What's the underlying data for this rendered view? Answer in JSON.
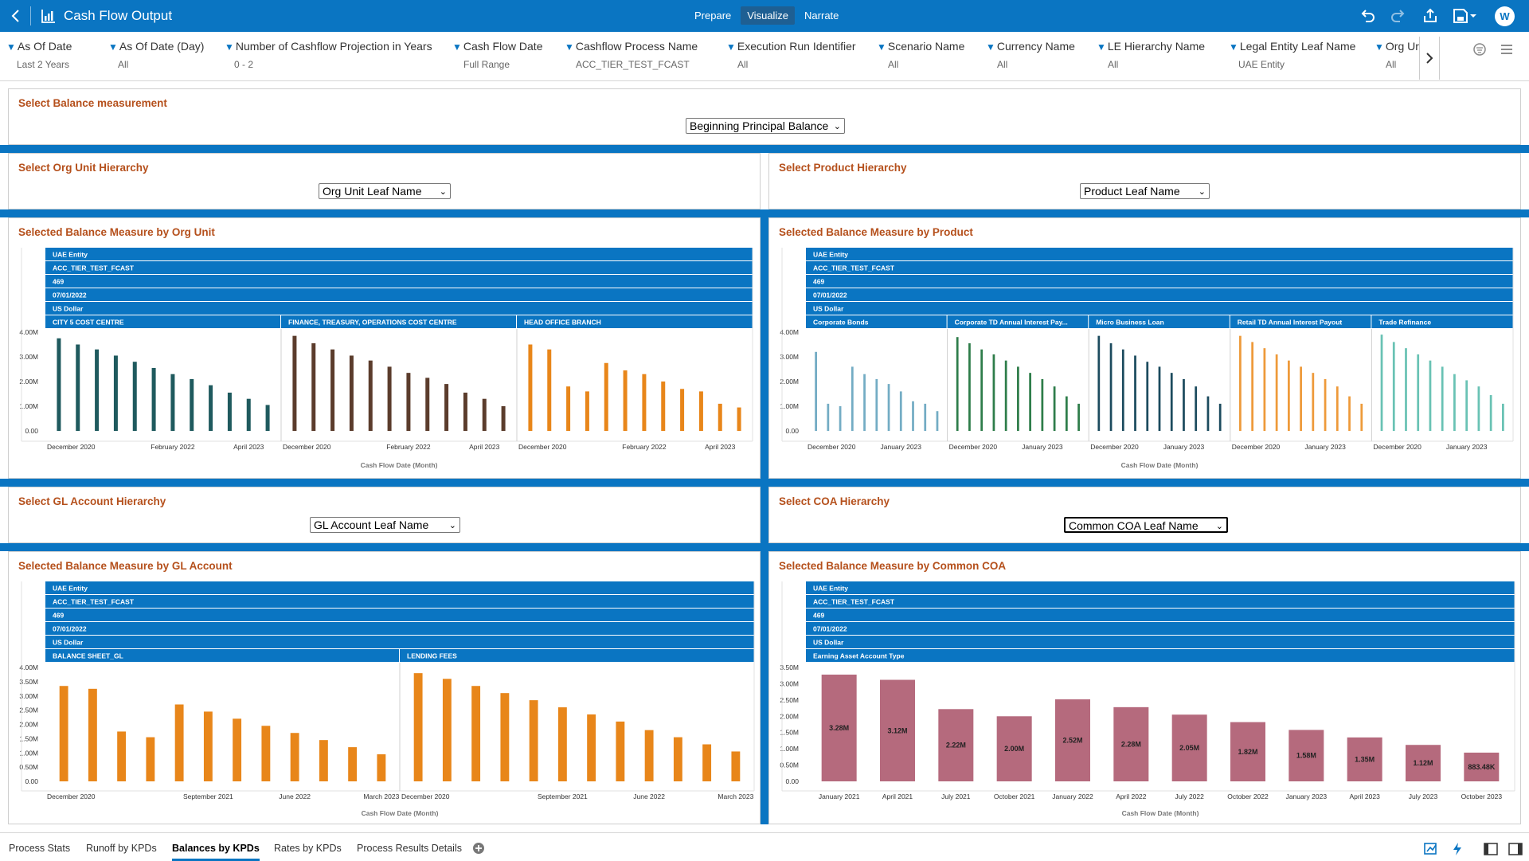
{
  "app": {
    "title": "Cash Flow Output",
    "modes": [
      "Prepare",
      "Visualize",
      "Narrate"
    ],
    "active_mode": "Visualize",
    "user_initial": "W"
  },
  "filters": [
    {
      "name": "As Of Date",
      "value": "Last 2 Years"
    },
    {
      "name": "As Of Date (Day)",
      "value": "All"
    },
    {
      "name": "Number of Cashflow Projection in Years",
      "value": "0 - 2"
    },
    {
      "name": "Cash Flow Date",
      "value": "Full Range"
    },
    {
      "name": "Cashflow Process Name",
      "value": "ACC_TIER_TEST_FCAST"
    },
    {
      "name": "Execution Run Identifier",
      "value": "All"
    },
    {
      "name": "Scenario Name",
      "value": "All"
    },
    {
      "name": "Currency Name",
      "value": "All"
    },
    {
      "name": "LE Hierarchy Name",
      "value": "All"
    },
    {
      "name": "Legal Entity Leaf Name",
      "value": "UAE Entity"
    },
    {
      "name": "Org Ur",
      "value": "All"
    }
  ],
  "balance_panel": {
    "title": "Select Balance measurement",
    "selected": "Beginning Principal Balance"
  },
  "org_select_panel": {
    "title": "Select Org Unit Hierarchy",
    "selected": "Org Unit Leaf Name"
  },
  "product_select_panel": {
    "title": "Select Product Hierarchy",
    "selected": "Product Leaf Name"
  },
  "gl_select_panel": {
    "title": "Select GL Account Hierarchy",
    "selected": "GL Account Leaf Name"
  },
  "coa_select_panel": {
    "title": "Select COA Hierarchy",
    "selected": "Common COA Leaf Name"
  },
  "common_headers": [
    "UAE Entity",
    "ACC_TIER_TEST_FCAST",
    "469",
    "07/01/2022",
    "US Dollar"
  ],
  "x_axis_title": "Cash Flow Date (Month)",
  "charts": {
    "org": {
      "title": "Selected Balance Measure by Org Unit",
      "chart_data": {
        "type": "bar",
        "ylim": [
          0,
          4.0
        ],
        "y_ticks": [
          "0.00",
          "1.00M",
          "2.00M",
          "3.00M",
          "4.00M"
        ],
        "groups": [
          {
            "name": "CITY 5 COST CENTRE",
            "color": "#1f5a5e",
            "values": [
              3.75,
              3.5,
              3.3,
              3.05,
              2.8,
              2.55,
              2.3,
              2.1,
              1.85,
              1.55,
              1.3,
              1.05
            ],
            "xticks": [
              "December 2020",
              "February 2022",
              "April 2023"
            ]
          },
          {
            "name": "FINANCE, TREASURY, OPERATIONS COST CENTRE",
            "color": "#5b3c2c",
            "values": [
              3.85,
              3.55,
              3.3,
              3.05,
              2.85,
              2.6,
              2.35,
              2.15,
              1.9,
              1.55,
              1.3,
              1.0
            ],
            "xticks": [
              "December 2020",
              "February 2022",
              "April 2023"
            ]
          },
          {
            "name": "HEAD OFFICE BRANCH",
            "color": "#e8861a",
            "values": [
              3.5,
              3.3,
              1.8,
              1.6,
              2.75,
              2.45,
              2.3,
              2.0,
              1.7,
              1.6,
              1.1,
              0.95
            ],
            "xticks": [
              "December 2020",
              "February 2022",
              "April 2023"
            ]
          }
        ]
      }
    },
    "product": {
      "title": "Selected Balance Measure by Product",
      "chart_data": {
        "type": "bar",
        "ylim": [
          0,
          4.0
        ],
        "y_ticks": [
          "0.00",
          "1.00M",
          "2.00M",
          "3.00M",
          "4.00M"
        ],
        "groups": [
          {
            "name": "Corporate Bonds",
            "color": "#73acc4",
            "values": [
              3.2,
              1.1,
              1.0,
              2.6,
              2.3,
              2.1,
              1.9,
              1.6,
              1.2,
              1.1,
              0.8
            ],
            "xticks": [
              "December 2020",
              "January 2023"
            ]
          },
          {
            "name": "Corporate TD Annual Interest Pay...",
            "color": "#2e7d4a",
            "values": [
              3.8,
              3.55,
              3.3,
              3.1,
              2.85,
              2.6,
              2.35,
              2.1,
              1.8,
              1.4,
              1.1
            ],
            "xticks": [
              "December 2020",
              "January 2023"
            ]
          },
          {
            "name": "Micro Business Loan",
            "color": "#1c4b5e",
            "values": [
              3.85,
              3.55,
              3.3,
              3.05,
              2.8,
              2.6,
              2.35,
              2.1,
              1.8,
              1.4,
              1.1
            ],
            "xticks": [
              "December 2020",
              "January 2023"
            ]
          },
          {
            "name": "Retail TD Annual Interest Payout",
            "color": "#ee9a3a",
            "values": [
              3.85,
              3.6,
              3.35,
              3.1,
              2.85,
              2.6,
              2.35,
              2.1,
              1.8,
              1.4,
              1.1
            ],
            "xticks": [
              "December 2020",
              "January 2023"
            ]
          },
          {
            "name": "Trade Refinance",
            "color": "#69c2b4",
            "values": [
              3.9,
              3.6,
              3.35,
              3.1,
              2.85,
              2.6,
              2.3,
              2.05,
              1.8,
              1.45,
              1.1
            ],
            "xticks": [
              "December 2020",
              "January 2023"
            ]
          }
        ]
      }
    },
    "gl": {
      "title": "Selected Balance Measure by GL Account",
      "chart_data": {
        "type": "bar",
        "ylim": [
          0,
          4.0
        ],
        "y_ticks": [
          "0.00",
          "0.50M",
          "1.00M",
          "1.50M",
          "2.00M",
          "2.50M",
          "3.00M",
          "3.50M",
          "4.00M"
        ],
        "groups": [
          {
            "name": "BALANCE SHEET_GL",
            "color": "#e8861a",
            "values": [
              3.35,
              3.25,
              1.75,
              1.55,
              2.7,
              2.45,
              2.2,
              1.95,
              1.7,
              1.45,
              1.2,
              0.95
            ],
            "xticks": [
              "December 2020",
              "September 2021",
              "June 2022",
              "March 2023"
            ]
          },
          {
            "name": "LENDING FEES",
            "color": "#e8861a",
            "values": [
              3.8,
              3.6,
              3.35,
              3.1,
              2.85,
              2.6,
              2.35,
              2.1,
              1.8,
              1.55,
              1.3,
              1.05
            ],
            "xticks": [
              "December 2020",
              "September 2021",
              "June 2022",
              "March 2023"
            ]
          }
        ]
      }
    },
    "coa": {
      "title": "Selected Balance Measure by Common COA",
      "chart_data": {
        "type": "bar",
        "ylim": [
          0,
          3.5
        ],
        "y_ticks": [
          "0.00",
          "0.50M",
          "1.00M",
          "1.50M",
          "2.00M",
          "2.50M",
          "3.00M",
          "3.50M"
        ],
        "groups": [
          {
            "name": "Earning Asset Account Type",
            "color": "#b56a7d",
            "values": [
              3.28,
              3.12,
              2.22,
              2.0,
              2.52,
              2.28,
              2.05,
              1.82,
              1.58,
              1.35,
              1.12,
              0.883
            ],
            "labels": [
              "3.28M",
              "3.12M",
              "2.22M",
              "2.00M",
              "2.52M",
              "2.28M",
              "2.05M",
              "1.82M",
              "1.58M",
              "1.35M",
              "1.12M",
              "883.48K"
            ],
            "xticks": [
              "January 2021",
              "April 2021",
              "July 2021",
              "October 2021",
              "January 2022",
              "April 2022",
              "July 2022",
              "October 2022",
              "January 2023",
              "April 2023",
              "July 2023",
              "October 2023"
            ]
          }
        ]
      }
    }
  },
  "bottom_tabs": [
    "Process Stats",
    "Runoff by KPDs",
    "Balances by KPDs",
    "Rates by KPDs",
    "Process Results Details"
  ],
  "active_tab": "Balances by KPDs"
}
